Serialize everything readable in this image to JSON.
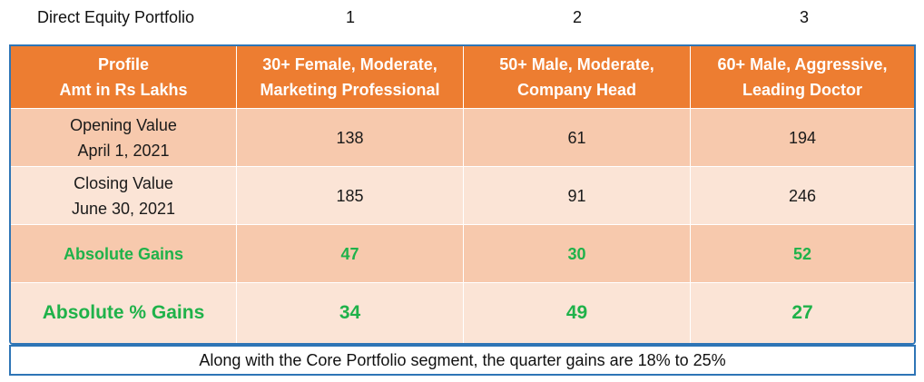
{
  "title_row": {
    "title": "Direct Equity Portfolio",
    "col_numbers": [
      "1",
      "2",
      "3"
    ]
  },
  "table": {
    "header": {
      "first": [
        "Profile",
        "Amt in Rs Lakhs"
      ],
      "cols": [
        [
          "30+ Female, Moderate,",
          "Marketing Professional"
        ],
        [
          "50+ Male, Moderate,",
          "Company Head"
        ],
        [
          "60+ Male, Aggressive,",
          "Leading Doctor"
        ]
      ]
    },
    "rows": [
      {
        "label": [
          "Opening Value",
          "April 1, 2021"
        ],
        "values": [
          "138",
          "61",
          "194"
        ]
      },
      {
        "label": [
          "Closing Value",
          "June 30, 2021"
        ],
        "values": [
          "185",
          "91",
          "246"
        ]
      },
      {
        "label": [
          "Absolute Gains"
        ],
        "values": [
          "47",
          "30",
          "52"
        ]
      },
      {
        "label": [
          "Absolute % Gains"
        ],
        "values": [
          "34",
          "49",
          "27"
        ]
      }
    ],
    "colors": {
      "header_bg": "#ed7d31",
      "row_dark": "#f7c9ad",
      "row_light": "#fbe4d6",
      "gain_text": "#1fb24a",
      "border": "#2e75b6"
    }
  },
  "note": "Along with the Core Portfolio segment, the quarter gains are 18% to 25%"
}
